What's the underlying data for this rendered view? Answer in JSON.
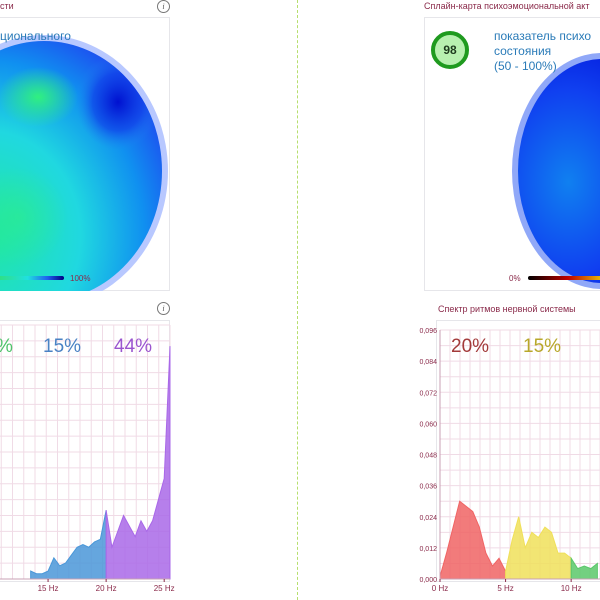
{
  "left": {
    "map_title": "сти",
    "map_caption": "ционального",
    "legend_max": "100%",
    "spectrum_pcts": [
      {
        "text": "%",
        "color": "#4fc36b"
      },
      {
        "text": "15%",
        "color": "#4a82c4"
      },
      {
        "text": "44%",
        "color": "#9b55cf"
      }
    ],
    "x_ticks": [
      "15 Hz",
      "20 Hz",
      "25 Hz"
    ]
  },
  "right": {
    "map_title": "Сплайн-карта психоэмоциональной акт",
    "score": "98",
    "map_caption_lines": [
      "показатель психо",
      "состояния",
      "(50 - 100%)"
    ],
    "legend_min": "0%",
    "spectrum_title": "Спектр ритмов нервной системы",
    "spectrum_pcts": [
      {
        "text": "20%",
        "color": "#a33a3a"
      },
      {
        "text": "15%",
        "color": "#b8a82a"
      }
    ],
    "y_ticks": [
      "0,096",
      "0,084",
      "0,072",
      "0,060",
      "0,048",
      "0,036",
      "0,024",
      "0,012",
      "0,000"
    ],
    "x_ticks": [
      "0 Hz",
      "5 Hz",
      "10 Hz"
    ]
  },
  "colors": {
    "panel_title": "#8a2a4a",
    "caption": "#2a7bb8",
    "divider": "#b7df6e",
    "badge_ring": "#1f9a1f"
  },
  "chart_data": [
    {
      "type": "area",
      "title": "",
      "x_unit": "Hz",
      "x": [
        10.5,
        11,
        11.5,
        12,
        12.5,
        13,
        13.5,
        14,
        14.5,
        15,
        15.5,
        16,
        16.5,
        17,
        17.5,
        18,
        18.5,
        19,
        19.5,
        20,
        20.5,
        21,
        21.5,
        22,
        22.5,
        23,
        23.5,
        24,
        24.5,
        25,
        25.5
      ],
      "y": [
        0.001,
        0.002,
        0.001,
        0.002,
        0.001,
        0.002,
        0.003,
        0.002,
        0.002,
        0.003,
        0.008,
        0.005,
        0.006,
        0.009,
        0.012,
        0.013,
        0.012,
        0.014,
        0.015,
        0.026,
        0.012,
        0.018,
        0.024,
        0.02,
        0.016,
        0.022,
        0.018,
        0.022,
        0.03,
        0.038,
        0.088
      ],
      "bands": [
        {
          "pct": "15%",
          "from": 13.5,
          "to": 20,
          "color": "#4a97d8"
        },
        {
          "pct": "44%",
          "from": 20,
          "to": 25.5,
          "color": "#a968e8"
        }
      ],
      "xlim": [
        10,
        25.5
      ],
      "ylim": [
        0,
        0.096
      ],
      "x_ticks": [
        "15 Hz",
        "20 Hz",
        "25 Hz"
      ]
    },
    {
      "type": "area",
      "title": "Спектр ритмов нервной системы",
      "x_unit": "Hz",
      "x": [
        0,
        0.5,
        1,
        1.5,
        2,
        2.5,
        3,
        3.5,
        4,
        4.5,
        5,
        5.5,
        6,
        6.5,
        7,
        7.5,
        8,
        8.5,
        9,
        9.5,
        10,
        10.5,
        11,
        11.5,
        12
      ],
      "y": [
        0.001,
        0.01,
        0.02,
        0.03,
        0.028,
        0.026,
        0.02,
        0.01,
        0.005,
        0.008,
        0.003,
        0.015,
        0.024,
        0.012,
        0.018,
        0.016,
        0.02,
        0.018,
        0.01,
        0.01,
        0.008,
        0.004,
        0.005,
        0.004,
        0.006
      ],
      "bands": [
        {
          "pct": "20%",
          "from": 0,
          "to": 5,
          "color": "#f06464"
        },
        {
          "pct": "15%",
          "from": 5,
          "to": 10,
          "color": "#f0e05a"
        },
        {
          "pct": "",
          "from": 10,
          "to": 12,
          "color": "#5ac86a"
        }
      ],
      "xlim": [
        0,
        12.2
      ],
      "ylim": [
        0,
        0.096
      ],
      "y_ticks": [
        "0,096",
        "0,084",
        "0,072",
        "0,060",
        "0,048",
        "0,036",
        "0,024",
        "0,012",
        "0,000"
      ],
      "x_ticks": [
        "0 Hz",
        "5 Hz",
        "10 Hz"
      ]
    }
  ]
}
